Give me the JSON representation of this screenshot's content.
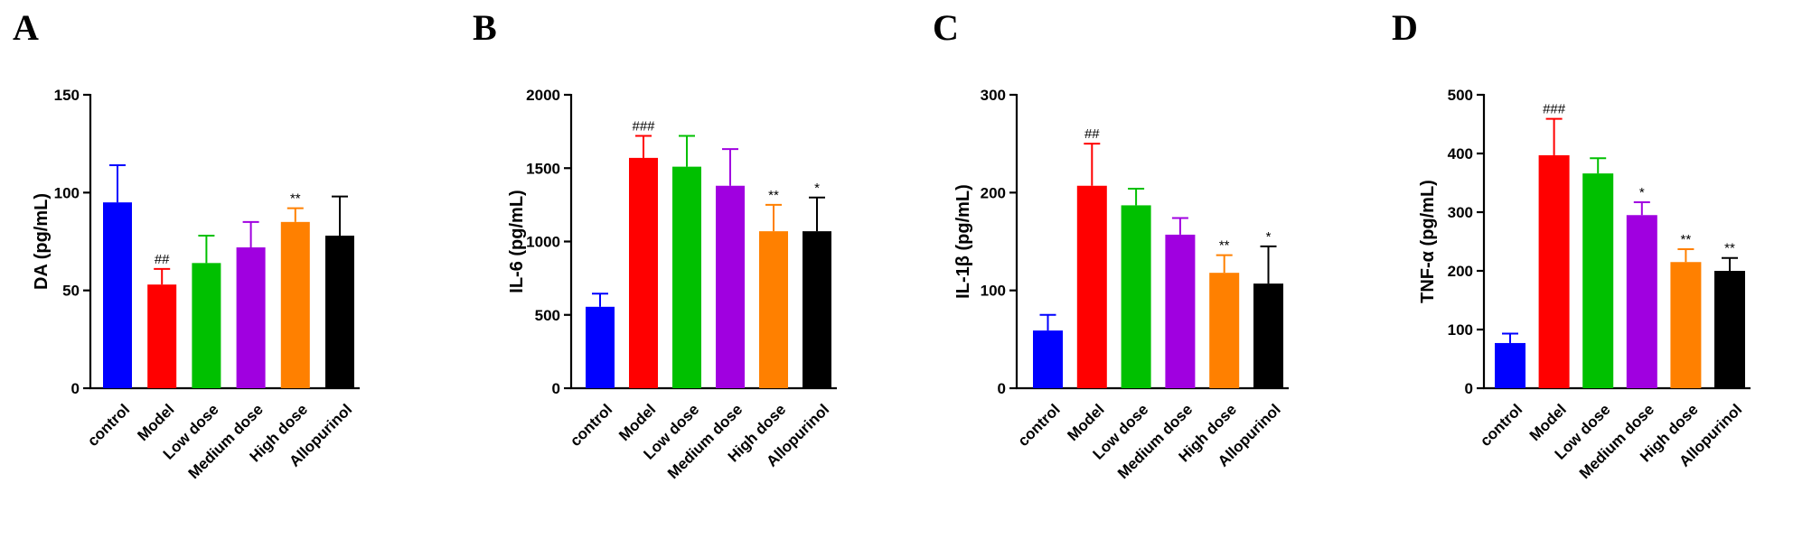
{
  "chart_data": [
    {
      "type": "bar",
      "panel_label": "A",
      "ylabel": "DA (pg/mL)",
      "ylim": [
        0,
        150
      ],
      "yticks": [
        0,
        50,
        100,
        150
      ],
      "categories": [
        "control",
        "Model",
        "Low dose",
        "Medium dose",
        "High dose",
        "Allopurinol"
      ],
      "values": [
        95,
        53,
        64,
        72,
        85,
        78
      ],
      "errors": [
        19,
        8,
        14,
        13,
        7,
        20
      ],
      "significance": [
        "",
        "##",
        "",
        "",
        "**",
        ""
      ],
      "colors": [
        "#0000ff",
        "#ff0000",
        "#00c000",
        "#a000e0",
        "#ff8000",
        "#000000"
      ]
    },
    {
      "type": "bar",
      "panel_label": "B",
      "ylabel": "IL-6 (pg/mL)",
      "ylim": [
        0,
        2000
      ],
      "yticks": [
        0,
        500,
        1000,
        1500,
        2000
      ],
      "categories": [
        "control",
        "Model",
        "Low dose",
        "Medium dose",
        "High dose",
        "Allopurinol"
      ],
      "values": [
        555,
        1570,
        1510,
        1380,
        1070,
        1070
      ],
      "errors": [
        90,
        150,
        210,
        250,
        180,
        230
      ],
      "significance": [
        "",
        "###",
        "",
        "",
        "**",
        "*"
      ],
      "colors": [
        "#0000ff",
        "#ff0000",
        "#00c000",
        "#a000e0",
        "#ff8000",
        "#000000"
      ]
    },
    {
      "type": "bar",
      "panel_label": "C",
      "ylabel": "IL-1β (pg/mL)",
      "ylim": [
        0,
        300
      ],
      "yticks": [
        0,
        100,
        200,
        300
      ],
      "categories": [
        "control",
        "Model",
        "Low dose",
        "Medium dose",
        "High dose",
        "Allopurinol"
      ],
      "values": [
        59,
        207,
        187,
        157,
        118,
        107
      ],
      "errors": [
        16,
        43,
        17,
        17,
        18,
        38
      ],
      "significance": [
        "",
        "##",
        "",
        "",
        "**",
        "*"
      ],
      "colors": [
        "#0000ff",
        "#ff0000",
        "#00c000",
        "#a000e0",
        "#ff8000",
        "#000000"
      ]
    },
    {
      "type": "bar",
      "panel_label": "D",
      "ylabel": "TNF-α (pg/mL)",
      "ylim": [
        0,
        500
      ],
      "yticks": [
        0,
        100,
        200,
        300,
        400,
        500
      ],
      "categories": [
        "control",
        "Model",
        "Low dose",
        "Medium dose",
        "High dose",
        "Allopurinol"
      ],
      "values": [
        77,
        397,
        366,
        295,
        215,
        200
      ],
      "errors": [
        16,
        62,
        26,
        22,
        22,
        22
      ],
      "significance": [
        "",
        "###",
        "",
        "*",
        "**",
        "**"
      ],
      "colors": [
        "#0000ff",
        "#ff0000",
        "#00c000",
        "#a000e0",
        "#ff8000",
        "#000000"
      ]
    }
  ]
}
